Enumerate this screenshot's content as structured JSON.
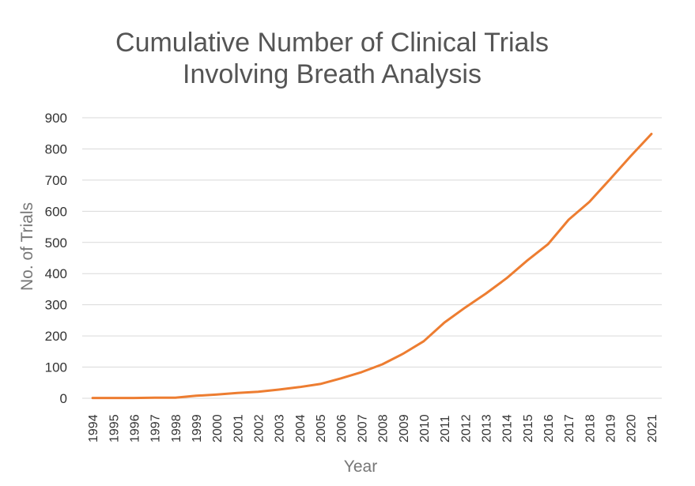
{
  "chart_data": {
    "type": "line",
    "title_lines": [
      "Cumulative Number of Clinical Trials",
      "Involving Breath Analysis"
    ],
    "xlabel": "Year",
    "ylabel": "No. of Trials",
    "ylim": [
      0,
      900
    ],
    "yticks": [
      "0",
      "100",
      "200",
      "300",
      "400",
      "500",
      "600",
      "700",
      "800",
      "900"
    ],
    "categories": [
      "1994",
      "1995",
      "1996",
      "1997",
      "1998",
      "1999",
      "2000",
      "2001",
      "2002",
      "2003",
      "2004",
      "2005",
      "2006",
      "2007",
      "2008",
      "2009",
      "2010",
      "2011",
      "2012",
      "2013",
      "2014",
      "2015",
      "2016",
      "2017",
      "2018",
      "2019",
      "2020",
      "2021"
    ],
    "values": [
      1,
      1,
      1,
      2,
      2,
      8,
      12,
      17,
      21,
      28,
      36,
      46,
      64,
      84,
      109,
      143,
      183,
      243,
      291,
      336,
      385,
      442,
      494,
      573,
      630,
      703,
      777,
      848
    ],
    "grid": true,
    "legend": "none",
    "color": "#ed7d31"
  }
}
